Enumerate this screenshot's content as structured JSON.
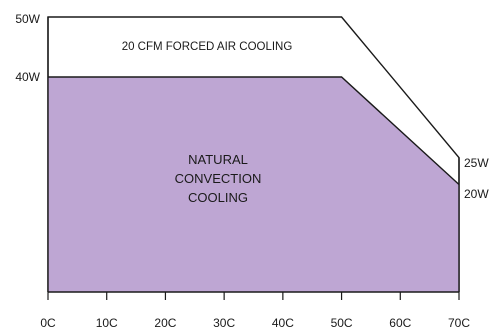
{
  "chart_data": {
    "type": "area",
    "title": "",
    "xlabel": "",
    "ylabel": "",
    "x_ticks": [
      "0C",
      "10C",
      "20C",
      "30C",
      "40C",
      "50C",
      "60C",
      "70C"
    ],
    "xlim": [
      0,
      70
    ],
    "ylim": [
      0,
      55
    ],
    "grid": false,
    "series": [
      {
        "name": "20 CFM FORCED AIR COOLING",
        "fill": "#ffffff",
        "stroke": "#1a1a1a",
        "points": [
          [
            0,
            50
          ],
          [
            50,
            50
          ],
          [
            70,
            25
          ]
        ],
        "end_label": "25W",
        "start_label": "50W"
      },
      {
        "name": "NATURAL CONVECTION COOLING",
        "fill": "#bea6d3",
        "stroke": "#1a1a1a",
        "points": [
          [
            0,
            40
          ],
          [
            50,
            40
          ],
          [
            70,
            20
          ]
        ],
        "end_label": "20W",
        "start_label": "40W"
      }
    ],
    "annotations": {
      "forced": "20 CFM FORCED AIR COOLING",
      "natural_lines": [
        "NATURAL",
        "CONVECTION",
        "COOLING"
      ]
    }
  }
}
